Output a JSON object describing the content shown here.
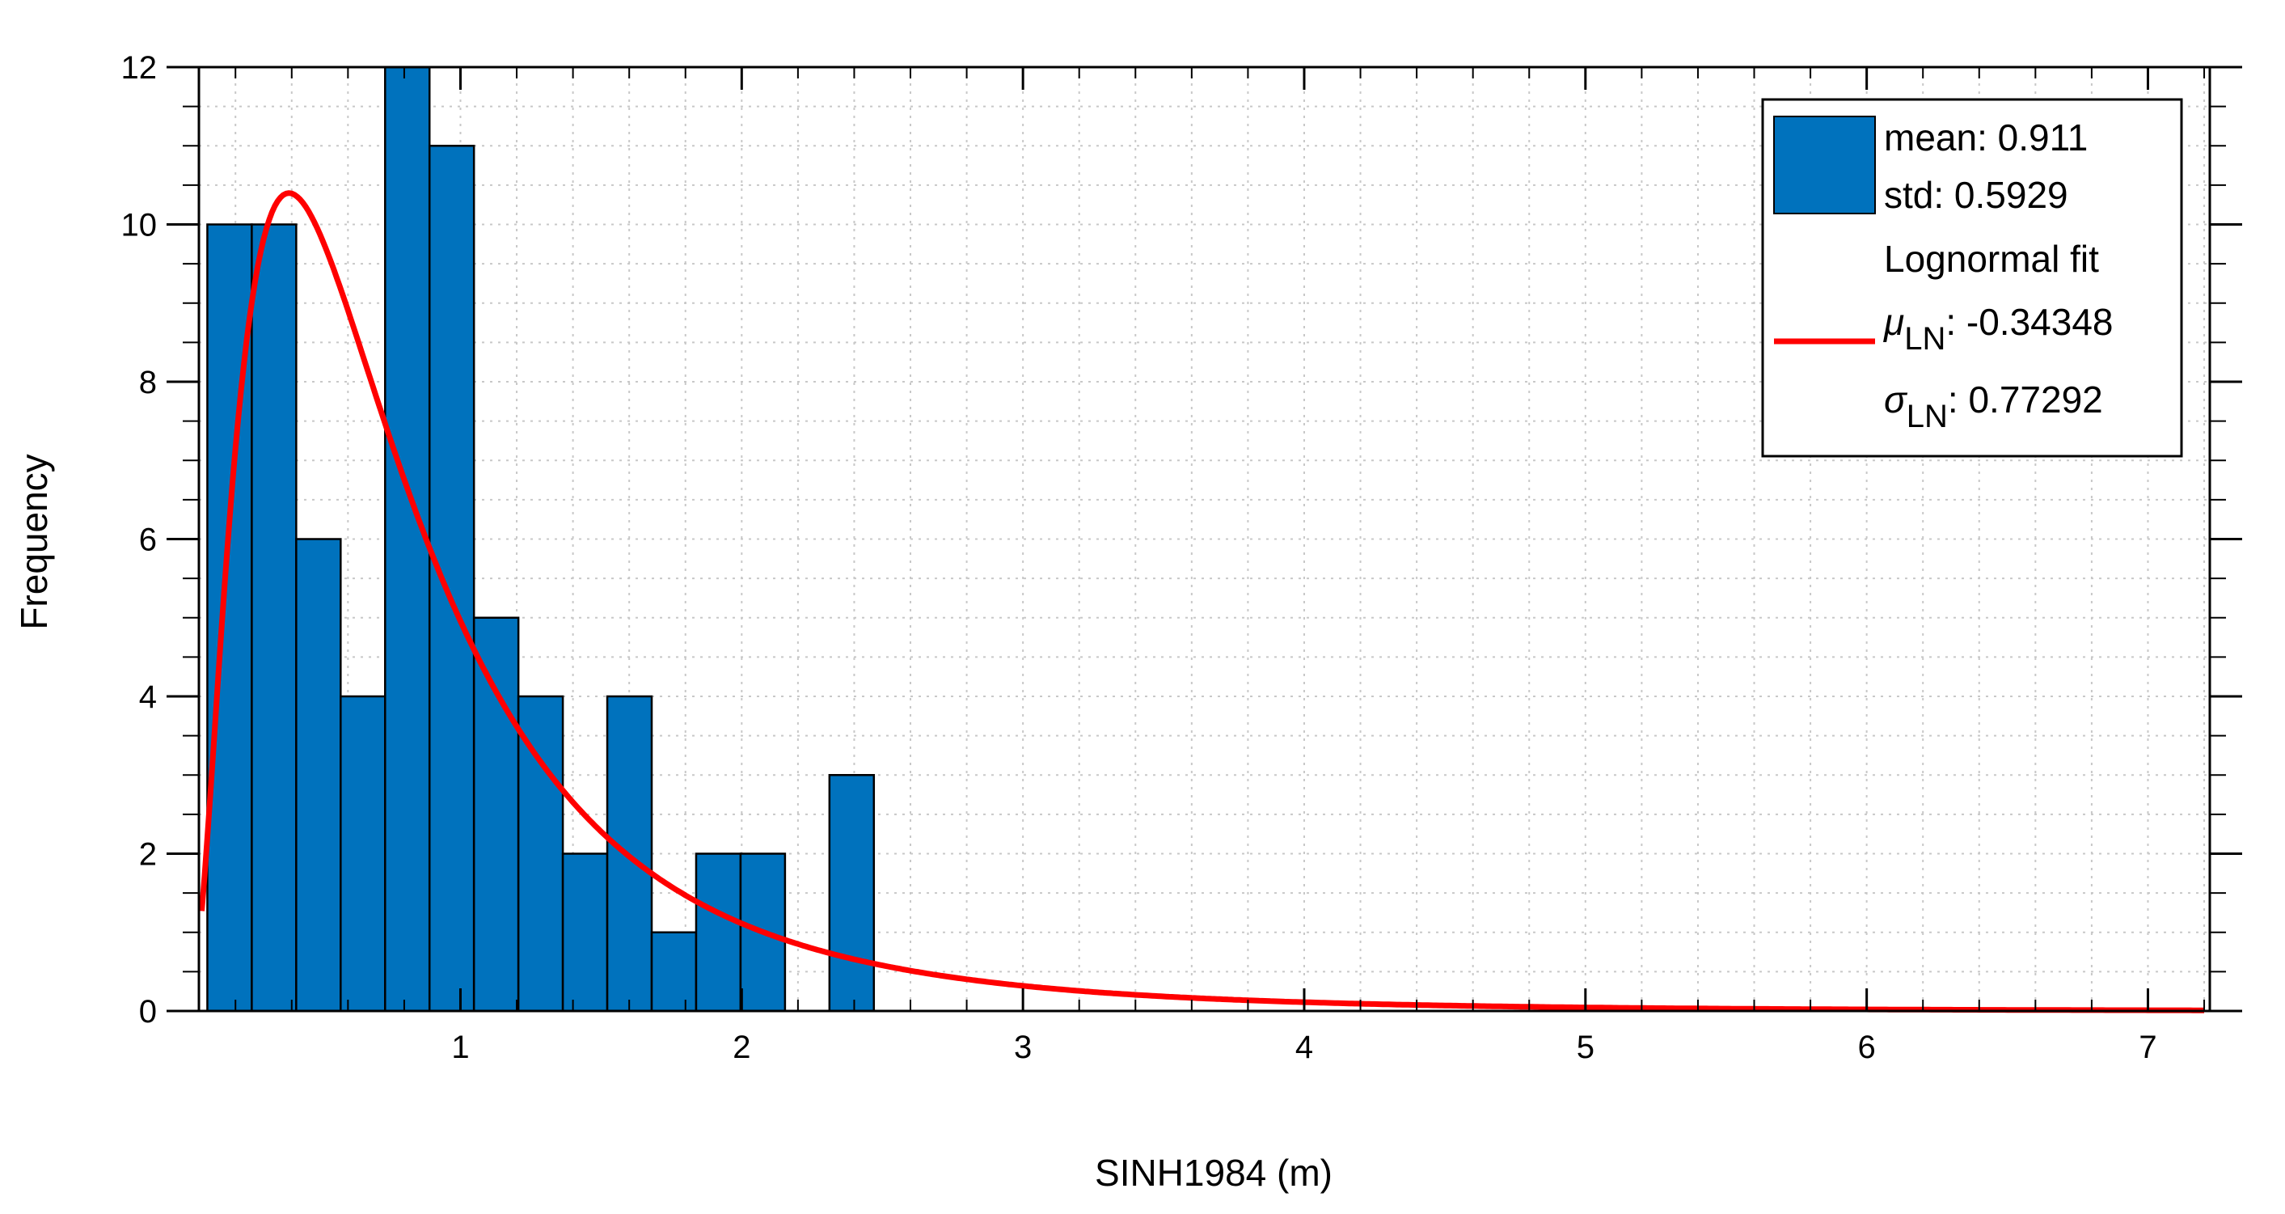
{
  "chart_data": {
    "type": "bar",
    "xlabel": "SINH1984 (m)",
    "ylabel": "Frequency",
    "xlim": [
      0.07,
      7.22
    ],
    "ylim": [
      0,
      12
    ],
    "xticks": [
      1,
      2,
      3,
      4,
      5,
      6,
      7
    ],
    "yticks": [
      0,
      2,
      4,
      6,
      8,
      10,
      12
    ],
    "grid": "minor dotted",
    "legend_position": "top-right",
    "bar_color": "#0072BD",
    "fit_color": "#FF0000",
    "histogram": {
      "bin_width": 0.158,
      "bin_start": 0.1,
      "bin_edges": [
        0.1,
        0.258,
        0.416,
        0.574,
        0.732,
        0.89,
        1.048,
        1.206,
        1.364,
        1.522,
        1.68,
        1.838,
        1.996,
        2.154,
        2.312,
        2.47
      ],
      "counts": [
        10,
        10,
        6,
        4,
        12,
        11,
        5,
        4,
        2,
        4,
        1,
        2,
        2,
        0,
        3
      ]
    },
    "fit_curve": {
      "name": "Lognormal fit",
      "mu_ln": -0.34348,
      "sigma_ln": 0.77292,
      "scale_factor": 10.6
    },
    "legend": {
      "mean_label": "mean: 0.911",
      "std_label": "std: 0.5929",
      "fit_label": "Lognormal fit",
      "mu_symbol": "μ",
      "mu_sub": "LN",
      "mu_value": ": -0.34348",
      "sigma_symbol": "σ",
      "sigma_sub": "LN",
      "sigma_value": ": 0.77292"
    }
  }
}
